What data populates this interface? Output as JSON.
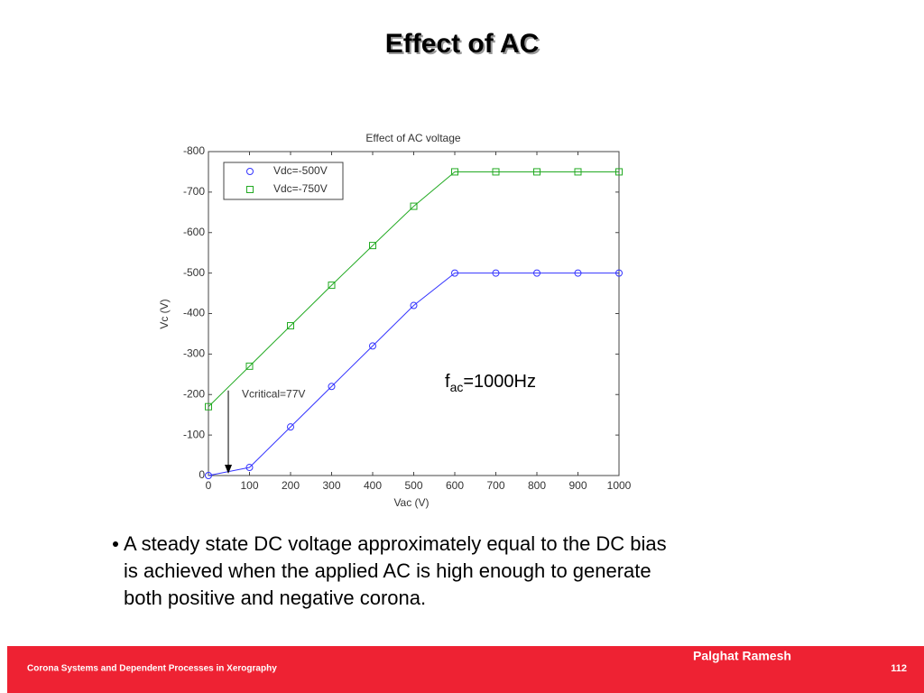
{
  "slide": {
    "title": "Effect of AC",
    "bullet": [
      "A steady state DC voltage approximately equal to the DC bias",
      "is achieved when the applied AC is high enough to generate",
      "both positive and negative corona."
    ],
    "footer": {
      "author": "Palghat Ramesh",
      "course": "Corona Systems and Dependent Processes in Xerography",
      "page": "112"
    }
  },
  "chart_data": {
    "type": "line",
    "title": "Effect of AC voltage",
    "xlabel": "Vac (V)",
    "ylabel": "Vc (V)",
    "x": [
      0,
      100,
      200,
      300,
      400,
      500,
      600,
      700,
      800,
      900,
      1000
    ],
    "series": [
      {
        "name": "Vdc=-500V",
        "color": "#3333ff",
        "marker": "circle",
        "values": [
          0,
          -20,
          -120,
          -220,
          -320,
          -420,
          -500,
          -500,
          -500,
          -500,
          -500
        ]
      },
      {
        "name": "Vdc=-750V",
        "color": "#22aa22",
        "marker": "square",
        "values": [
          -170,
          -270,
          -370,
          -470,
          -568,
          -665,
          -750,
          -750,
          -750,
          -750,
          -750
        ]
      }
    ],
    "xlim": [
      0,
      1000
    ],
    "xticks": [
      0,
      100,
      200,
      300,
      400,
      500,
      600,
      700,
      800,
      900,
      1000
    ],
    "ylim": [
      0,
      -800
    ],
    "yticks": [
      -800,
      -700,
      -600,
      -500,
      -400,
      -300,
      -200,
      -100,
      0
    ],
    "legend": "upper left",
    "annotations": [
      {
        "text": "Vcritical=77V",
        "x": 77
      }
    ],
    "frequency_label": {
      "base": "f",
      "sub": "ac",
      "rest": "=1000Hz"
    }
  }
}
